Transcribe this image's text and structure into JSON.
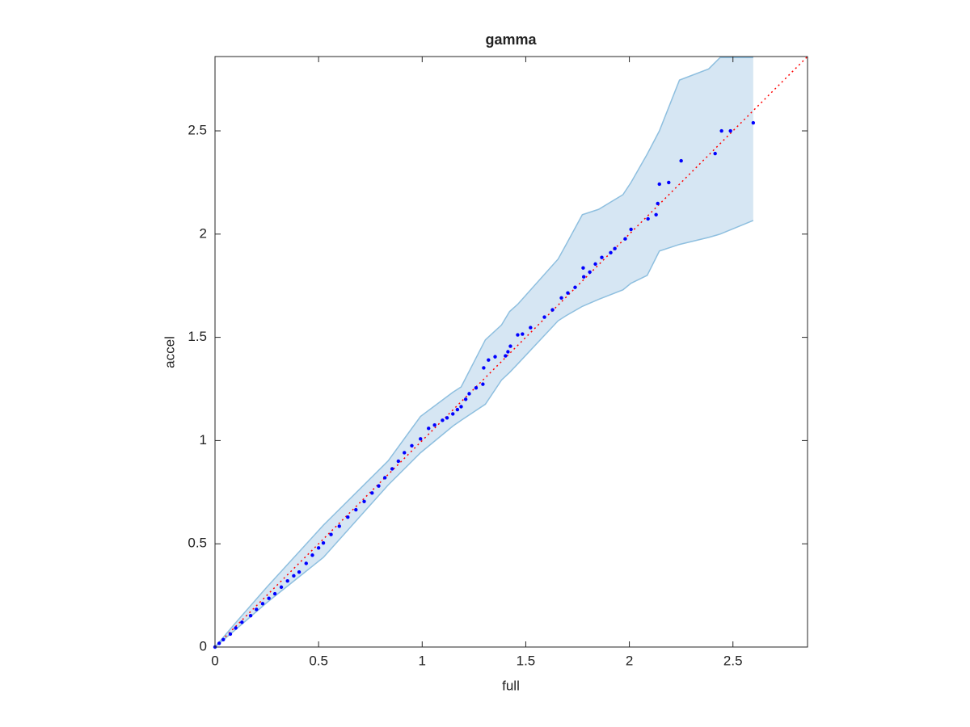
{
  "chart_data": {
    "type": "scatter",
    "title": "gamma",
    "xlabel": "full",
    "ylabel": "accel",
    "xlim": [
      0,
      2.86
    ],
    "ylim": [
      0,
      2.86
    ],
    "xticks": [
      0,
      0.5,
      1,
      1.5,
      2,
      2.5
    ],
    "yticks": [
      0,
      0.5,
      1,
      1.5,
      2,
      2.5
    ],
    "band": {
      "color": "#d6e6f3",
      "edge_color": "#8ebfdf",
      "x": [
        0,
        0.1,
        0.25,
        0.523,
        0.836,
        0.992,
        1.148,
        1.188,
        1.305,
        1.383,
        1.422,
        1.461,
        1.656,
        1.695,
        1.773,
        1.852,
        1.969,
        2.008,
        2.086,
        2.145,
        2.242,
        2.383,
        2.438,
        2.598
      ],
      "upper": [
        0,
        0.118,
        0.29,
        0.59,
        0.902,
        1.117,
        1.234,
        1.26,
        1.488,
        1.56,
        1.625,
        1.66,
        1.879,
        1.95,
        2.094,
        2.12,
        2.191,
        2.25,
        2.387,
        2.5,
        2.746,
        2.8,
        2.855,
        2.855
      ],
      "lower": [
        0,
        0.085,
        0.215,
        0.434,
        0.785,
        0.941,
        1.07,
        1.098,
        1.176,
        1.293,
        1.33,
        1.371,
        1.58,
        1.605,
        1.65,
        1.684,
        1.73,
        1.762,
        1.8,
        1.918,
        1.95,
        1.984,
        2.0,
        2.066
      ]
    },
    "reference": {
      "color": "#ff0000",
      "x": [
        0,
        2.86
      ],
      "y": [
        0,
        2.86
      ]
    },
    "points": {
      "color": "#0000ff",
      "x": [
        0,
        0.02,
        0.04,
        0.074,
        0.1,
        0.13,
        0.172,
        0.2,
        0.23,
        0.26,
        0.289,
        0.32,
        0.35,
        0.38,
        0.406,
        0.44,
        0.47,
        0.5,
        0.523,
        0.56,
        0.6,
        0.641,
        0.68,
        0.72,
        0.758,
        0.79,
        0.82,
        0.855,
        0.885,
        0.914,
        0.95,
        0.992,
        1.031,
        1.06,
        1.098,
        1.12,
        1.148,
        1.17,
        1.188,
        1.21,
        1.227,
        1.26,
        1.293,
        1.297,
        1.32,
        1.352,
        1.402,
        1.414,
        1.426,
        1.461,
        1.484,
        1.523,
        1.59,
        1.629,
        1.672,
        1.703,
        1.738,
        1.777,
        1.78,
        1.809,
        1.836,
        1.867,
        1.91,
        1.93,
        1.98,
        2.008,
        2.09,
        2.129,
        2.137,
        2.145,
        2.19,
        2.25,
        2.414,
        2.445,
        2.488,
        2.598
      ],
      "y": [
        0,
        0.018,
        0.036,
        0.063,
        0.092,
        0.12,
        0.152,
        0.182,
        0.21,
        0.236,
        0.258,
        0.29,
        0.32,
        0.345,
        0.363,
        0.405,
        0.445,
        0.48,
        0.504,
        0.545,
        0.585,
        0.629,
        0.665,
        0.705,
        0.746,
        0.78,
        0.82,
        0.863,
        0.9,
        0.941,
        0.975,
        1.008,
        1.059,
        1.075,
        1.098,
        1.11,
        1.129,
        1.15,
        1.164,
        1.2,
        1.227,
        1.255,
        1.273,
        1.352,
        1.39,
        1.406,
        1.41,
        1.43,
        1.457,
        1.512,
        1.516,
        1.547,
        1.598,
        1.633,
        1.691,
        1.715,
        1.742,
        1.836,
        1.793,
        1.816,
        1.855,
        1.887,
        1.91,
        1.93,
        1.977,
        2.023,
        2.074,
        2.094,
        2.148,
        2.242,
        2.25,
        2.355,
        2.39,
        2.5,
        2.5,
        2.539
      ]
    }
  }
}
